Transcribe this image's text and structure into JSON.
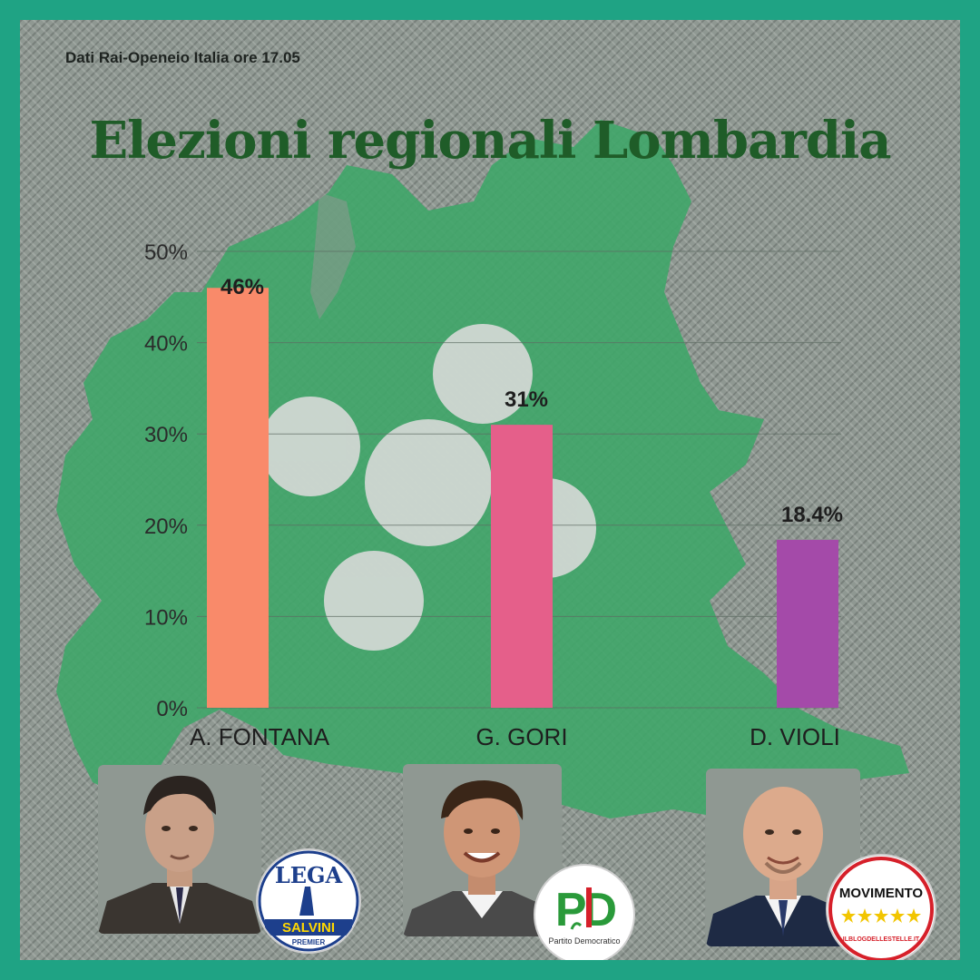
{
  "source_note": "Dati Rai-Openeio Italia ore 17.05",
  "title": "Elezioni regionali Lombardia",
  "colors": {
    "frame": "#1fa384",
    "title": "#1f5c28",
    "map": "#3fa669",
    "emblem": "#d5d9d6"
  },
  "chart_data": {
    "type": "bar",
    "categories": [
      "A. FONTANA",
      "G. GORI",
      "D. VIOLI"
    ],
    "values": [
      46,
      31,
      18.4
    ],
    "value_labels": [
      "46%",
      "31%",
      "18.4%"
    ],
    "colors": [
      "#f98a6a",
      "#e55f8a",
      "#a44aa9"
    ],
    "yticks": [
      "0%",
      "10%",
      "20%",
      "30%",
      "40%",
      "50%"
    ],
    "ylim": [
      0,
      50
    ],
    "grid": true
  },
  "candidates": [
    {
      "name": "A. FONTANA",
      "party_logo": "lega-salvini-logo",
      "logo_text": [
        "LEGA",
        "SALVINI",
        "PREMIER"
      ]
    },
    {
      "name": "G. GORI",
      "party_logo": "partito-democratico-logo",
      "logo_text": [
        "PD",
        "Partito Democratico"
      ]
    },
    {
      "name": "D. VIOLI",
      "party_logo": "movimento-5-stelle-logo",
      "logo_text": [
        "MOVIMENTO",
        "ILBLOGDELLESTELLE.IT"
      ]
    }
  ]
}
